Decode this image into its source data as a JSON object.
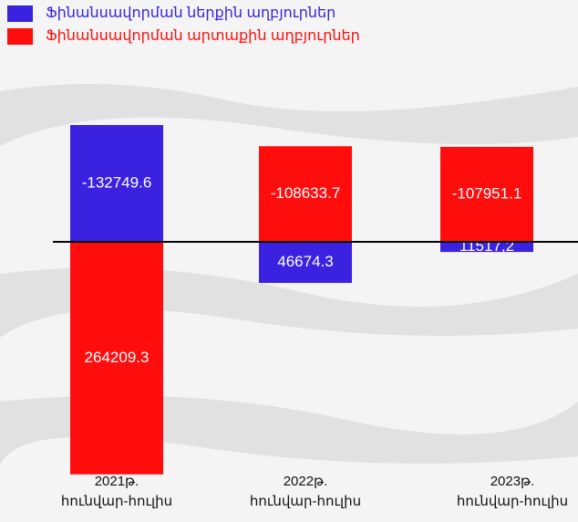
{
  "chart_data": {
    "type": "bar",
    "stacked": true,
    "inverted_y": true,
    "categories": [
      [
        "2021թ.",
        "հունվար-հուլիս"
      ],
      [
        "2022թ.",
        "հունվար-հուլիս"
      ],
      [
        "2023թ.",
        "հունվար-հուլիս"
      ]
    ],
    "series": [
      {
        "name": "Ֆինանսավորման ներքին աղբյուրներ",
        "color": "#3a22e0",
        "values": [
          -132749.6,
          46674.3,
          11517.2
        ],
        "value_labels": [
          "-132749.6",
          "46674.3",
          "11517,2"
        ]
      },
      {
        "name": "Ֆինանսավորման արտաքին աղբյուրներ",
        "color": "#ff0d0d",
        "values": [
          264209.3,
          -108633.7,
          -107951.1
        ]
      }
    ],
    "ylim": [
      -140000,
      280000
    ],
    "legend": "top-left"
  }
}
